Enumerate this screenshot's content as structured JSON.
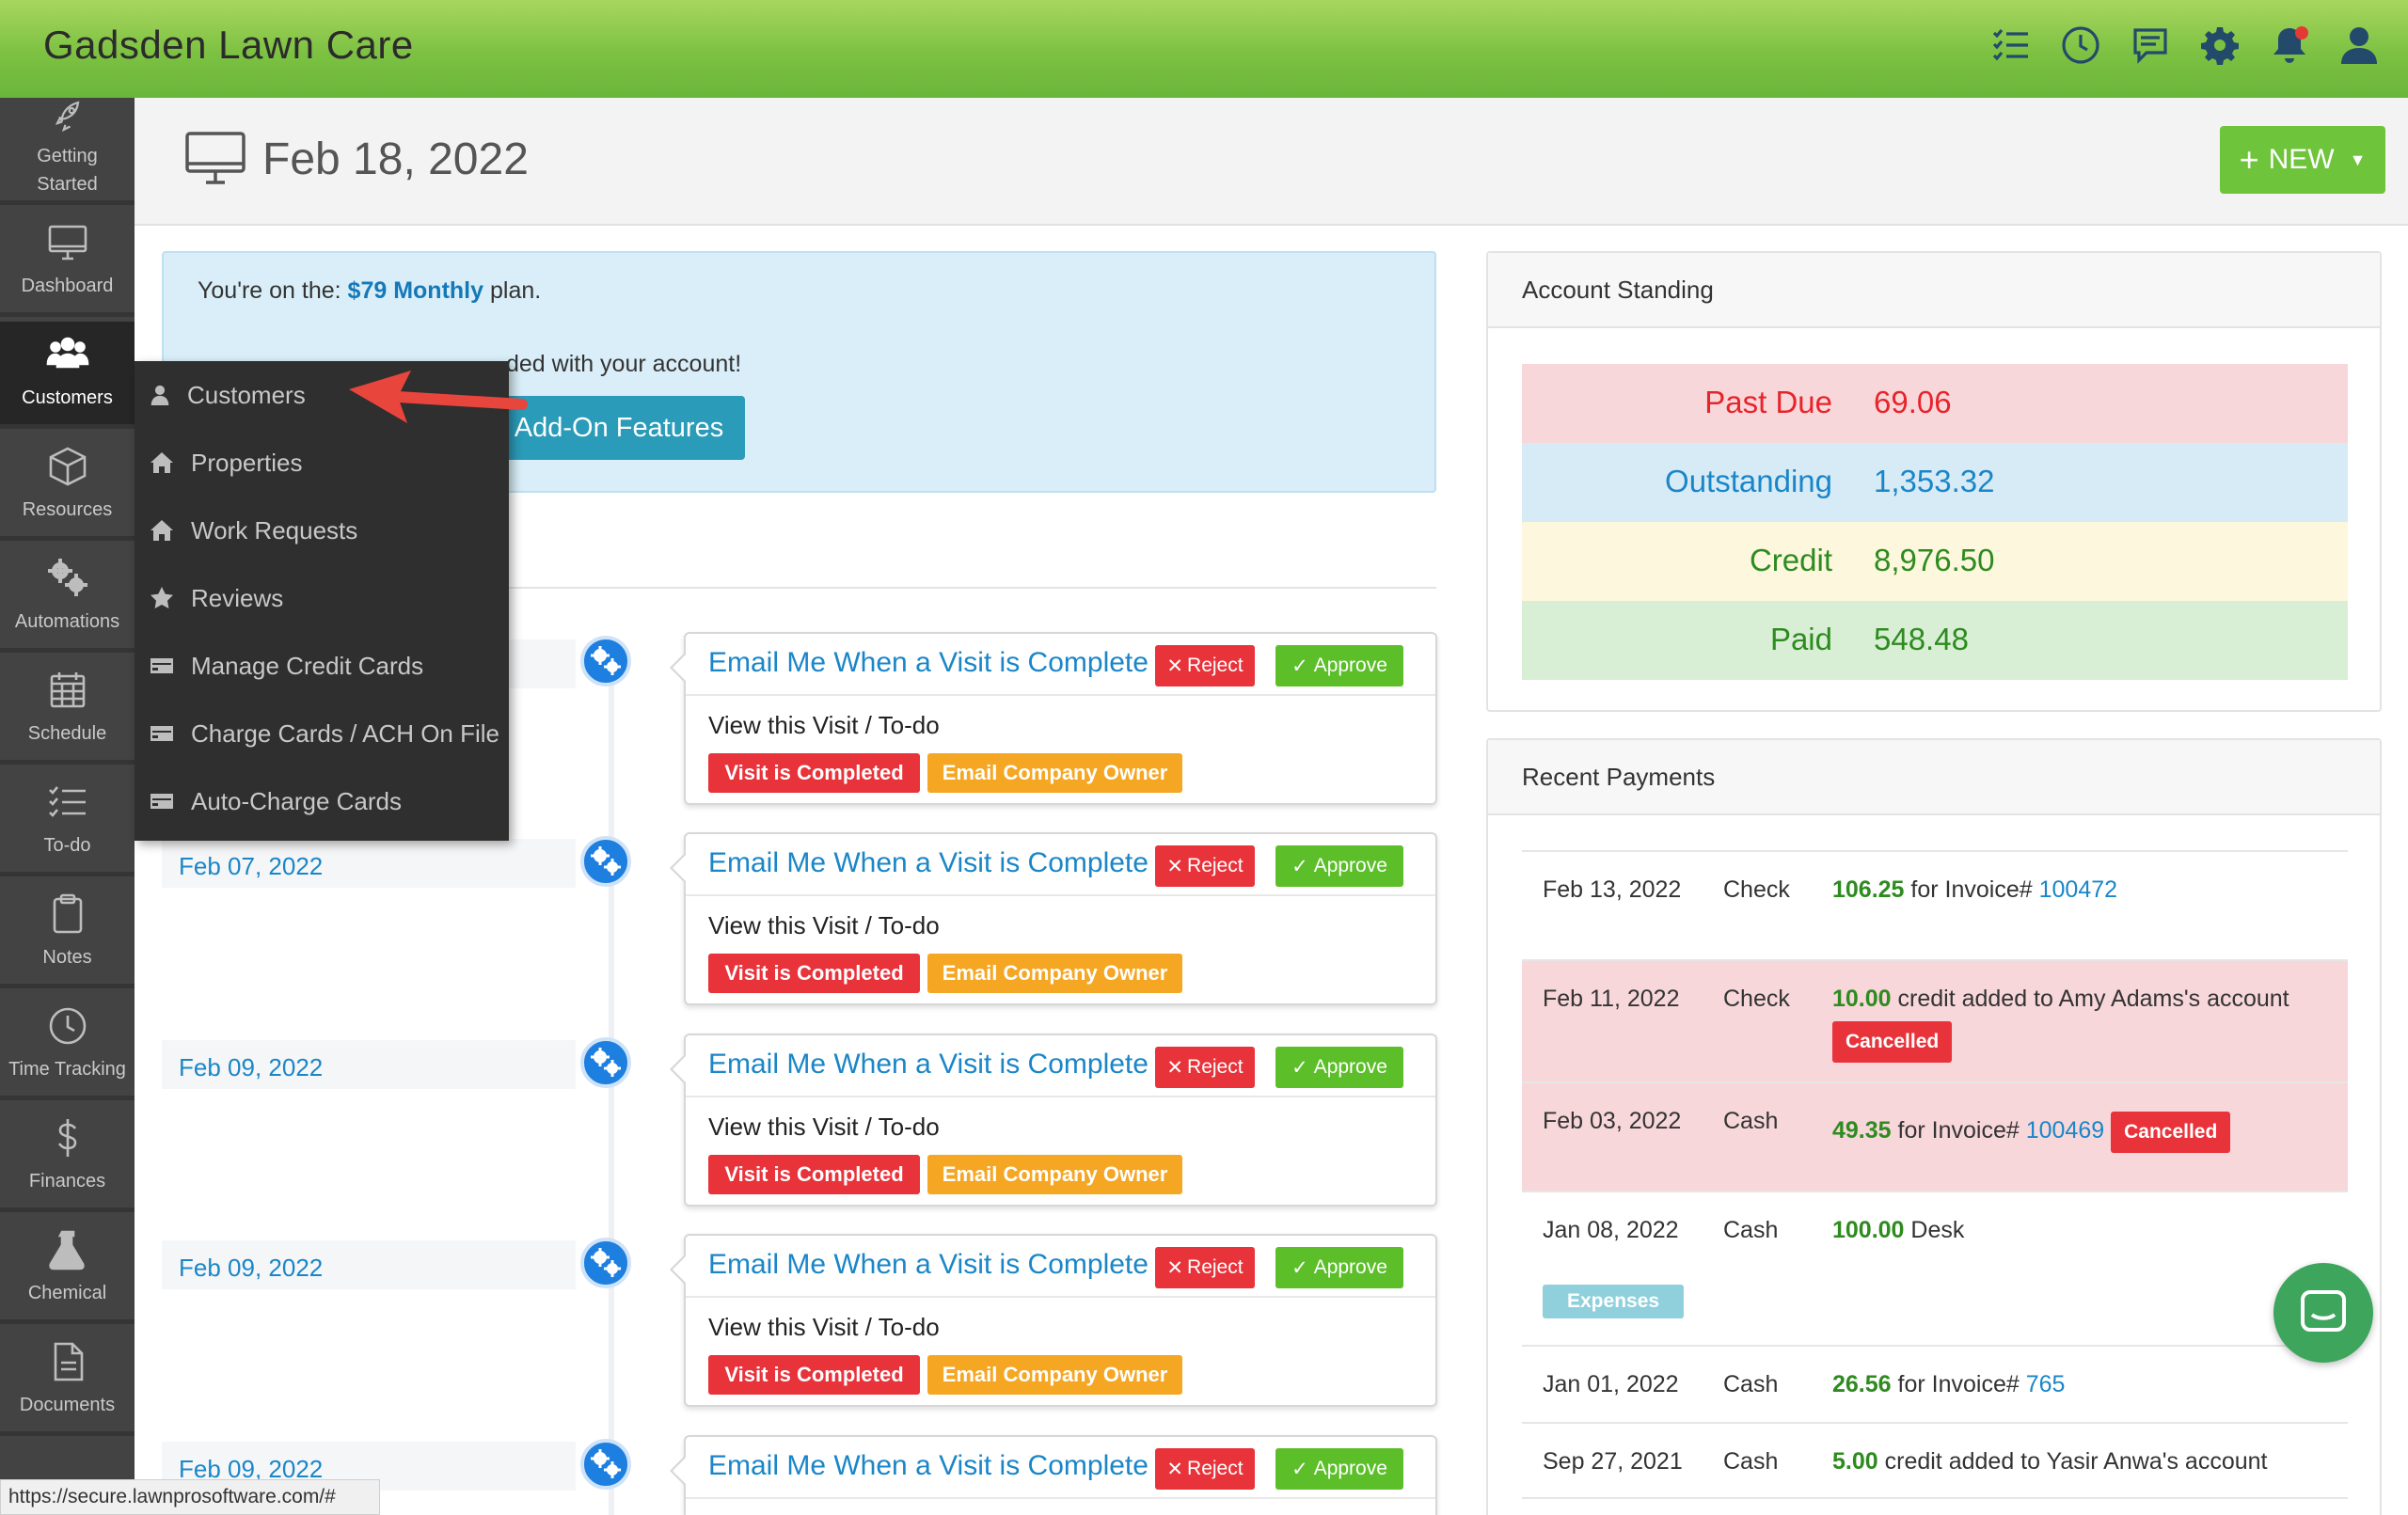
{
  "app": {
    "name": "Gadsden Lawn Care"
  },
  "top_icons": [
    "checklist-icon",
    "clock-icon",
    "chat-icon",
    "gear-icon",
    "bell-icon",
    "user-icon"
  ],
  "sidebar": {
    "items": [
      {
        "label_line1": "Getting",
        "label_line2": "Started",
        "icon": "rocket-icon"
      },
      {
        "label": "Dashboard",
        "icon": "monitor-icon"
      },
      {
        "label": "Customers",
        "icon": "users-icon"
      },
      {
        "label": "Resources",
        "icon": "box-icon"
      },
      {
        "label": "Automations",
        "icon": "gears-icon"
      },
      {
        "label": "Schedule",
        "icon": "calendar-icon"
      },
      {
        "label": "To-do",
        "icon": "checklist-icon"
      },
      {
        "label": "Notes",
        "icon": "clipboard-icon"
      },
      {
        "label": "Time Tracking",
        "icon": "clock-icon"
      },
      {
        "label": "Finances",
        "icon": "dollar-icon"
      },
      {
        "label": "Chemical",
        "icon": "flask-icon"
      },
      {
        "label": "Documents",
        "icon": "document-icon"
      }
    ]
  },
  "customers_menu": {
    "items": [
      {
        "label": "Customers",
        "icon": "user-icon"
      },
      {
        "label": "Properties",
        "icon": "home-icon"
      },
      {
        "label": "Work Requests",
        "icon": "home-icon"
      },
      {
        "label": "Reviews",
        "icon": "star-icon"
      },
      {
        "label": "Manage Credit Cards",
        "icon": "credit-card-icon"
      },
      {
        "label": "Charge Cards / ACH On File",
        "icon": "credit-card-icon"
      },
      {
        "label": "Auto-Charge Cards",
        "icon": "credit-card-icon"
      }
    ]
  },
  "header": {
    "title": "Feb 18, 2022",
    "new_button": "NEW"
  },
  "plan": {
    "prefix": "You're on the:",
    "plan_name": "$79 Monthly",
    "suffix": "plan.",
    "features_text": "ded with your account!",
    "addon_button": "Add-On Features"
  },
  "timeline": {
    "entries": [
      {
        "date": "",
        "title": "Email Me When a Visit is Complete",
        "reject": "Reject",
        "approve": "Approve",
        "link": "View this Visit / To-do",
        "badge1": "Visit is Completed",
        "badge2": "Email Company Owner"
      },
      {
        "date": "Feb 07, 2022",
        "title": "Email Me When a Visit is Complete",
        "reject": "Reject",
        "approve": "Approve",
        "link": "View this Visit / To-do",
        "badge1": "Visit is Completed",
        "badge2": "Email Company Owner"
      },
      {
        "date": "Feb 09, 2022",
        "title": "Email Me When a Visit is Complete",
        "reject": "Reject",
        "approve": "Approve",
        "link": "View this Visit / To-do",
        "badge1": "Visit is Completed",
        "badge2": "Email Company Owner"
      },
      {
        "date": "Feb 09, 2022",
        "title": "Email Me When a Visit is Complete",
        "reject": "Reject",
        "approve": "Approve",
        "link": "View this Visit / To-do",
        "badge1": "Visit is Completed",
        "badge2": "Email Company Owner"
      },
      {
        "date": "Feb 09, 2022",
        "title": "Email Me When a Visit is Complete",
        "reject": "Reject",
        "approve": "Approve",
        "link": "",
        "badge1": "",
        "badge2": ""
      }
    ]
  },
  "account_standing": {
    "title": "Account Standing",
    "rows": [
      {
        "label": "Past Due",
        "value": "69.06",
        "bg": "#f8d7da",
        "color": "#e8242b"
      },
      {
        "label": "Outstanding",
        "value": "1,353.32",
        "bg": "#d7ebf7",
        "color": "#1a86c8"
      },
      {
        "label": "Credit",
        "value": "8,976.50",
        "bg": "#fcf7dd",
        "color": "#2e8b1f"
      },
      {
        "label": "Paid",
        "value": "548.48",
        "bg": "#d8efd6",
        "color": "#2e8b1f"
      }
    ]
  },
  "recent_payments": {
    "title": "Recent Payments",
    "rows": [
      {
        "date": "Feb 13, 2022",
        "type": "Check",
        "amount": "106.25",
        "text": "for Invoice#",
        "link": "100472"
      },
      {
        "date": "Feb 11, 2022",
        "type": "Check",
        "amount": "10.00",
        "text": "credit added to Amy Adams's account",
        "badge": "Cancelled"
      },
      {
        "date": "Feb 03, 2022",
        "type": "Cash",
        "amount": "49.35",
        "text": "for Invoice#",
        "link": "100469",
        "badge": "Cancelled"
      },
      {
        "date": "Jan 08, 2022",
        "type": "Cash",
        "amount": "100.00",
        "text": "Desk",
        "badge": "Expenses"
      },
      {
        "date": "Jan 01, 2022",
        "type": "Cash",
        "amount": "26.56",
        "text": "for Invoice#",
        "link": "765"
      },
      {
        "date": "Sep 27, 2021",
        "type": "Cash",
        "amount": "5.00",
        "text": "credit added to Yasir Anwa's account"
      }
    ]
  },
  "status_bar": {
    "url": "https://secure.lawnprosoftware.com/#"
  }
}
